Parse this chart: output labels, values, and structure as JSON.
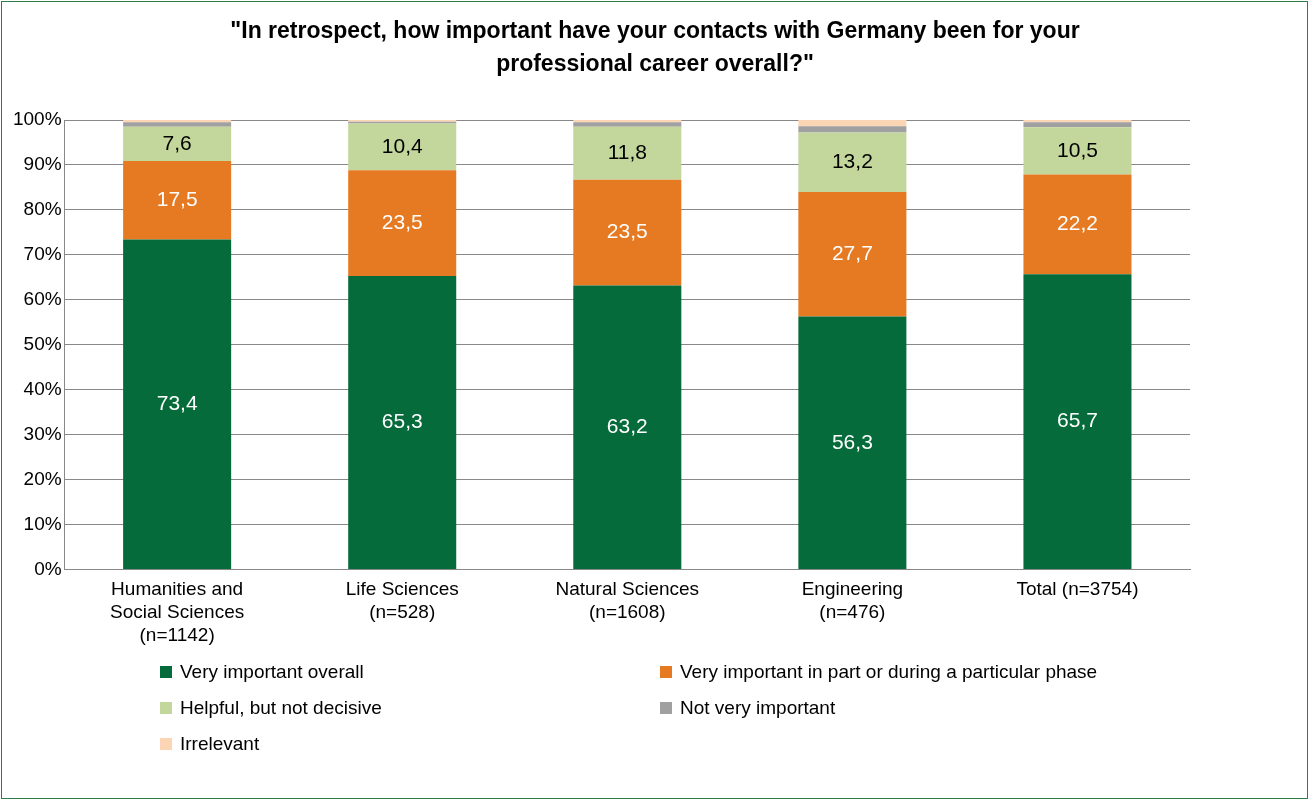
{
  "chart_data": {
    "type": "bar",
    "stacked": true,
    "title": "\"In retrospect, how important have your contacts with Germany been for your professional career overall?\"",
    "categories": [
      "Humanities and Social Sciences (n=1142)",
      "Life Sciences (n=528)",
      "Natural Sciences (n=1608)",
      "Engineering (n=476)",
      "Total (n=3754)"
    ],
    "series": [
      {
        "name": "Very important overall",
        "color": "#056b3a",
        "values": [
          73.4,
          65.3,
          63.2,
          56.3,
          65.7
        ],
        "value_labels": [
          "73,4",
          "65,3",
          "63,2",
          "56,3",
          "65,7"
        ]
      },
      {
        "name": "Very important in part or during a particular phase",
        "color": "#e67a22",
        "values": [
          17.5,
          23.5,
          23.5,
          27.7,
          22.2
        ],
        "value_labels": [
          "17,5",
          "23,5",
          "23,5",
          "27,7",
          "22,2"
        ]
      },
      {
        "name": "Helpful, but not decisive",
        "color": "#c3d69b",
        "values": [
          7.6,
          10.4,
          11.8,
          13.2,
          10.5
        ],
        "value_labels": [
          "7,6",
          "10,4",
          "11,8",
          "13,2",
          "10,5"
        ]
      },
      {
        "name": "Not very important",
        "color": "#a0a0a0",
        "values": [
          1.0,
          0.4,
          1.0,
          1.4,
          1.1
        ]
      },
      {
        "name": "Irrelevant",
        "color": "#fcd5b4",
        "values": [
          0.5,
          0.4,
          0.5,
          1.4,
          0.5
        ]
      }
    ],
    "ylim": [
      0,
      100
    ],
    "yticks": [
      {
        "value": 0,
        "label": "0%"
      },
      {
        "value": 10,
        "label": "10%"
      },
      {
        "value": 20,
        "label": "20%"
      },
      {
        "value": 30,
        "label": "30%"
      },
      {
        "value": 40,
        "label": "40%"
      },
      {
        "value": 50,
        "label": "50%"
      },
      {
        "value": 60,
        "label": "60%"
      },
      {
        "value": 70,
        "label": "70%"
      },
      {
        "value": 80,
        "label": "80%"
      },
      {
        "value": 90,
        "label": "90%"
      },
      {
        "value": 100,
        "label": "100%"
      }
    ],
    "grid": "y",
    "legend": "bottom"
  }
}
